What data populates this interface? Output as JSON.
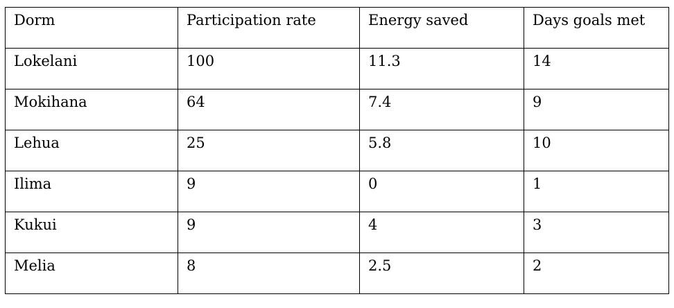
{
  "table": {
    "headers": [
      "Dorm",
      "Participation rate",
      "Energy saved",
      "Days goals met"
    ],
    "rows": [
      [
        "Lokelani",
        "100",
        "11.3",
        "14"
      ],
      [
        "Mokihana",
        "64",
        "7.4",
        "9"
      ],
      [
        "Lehua",
        "25",
        "5.8",
        "10"
      ],
      [
        "Ilima",
        "9",
        "0",
        "1"
      ],
      [
        "Kukui",
        "9",
        "4",
        "3"
      ],
      [
        "Melia",
        "8",
        "2.5",
        "2"
      ]
    ]
  }
}
